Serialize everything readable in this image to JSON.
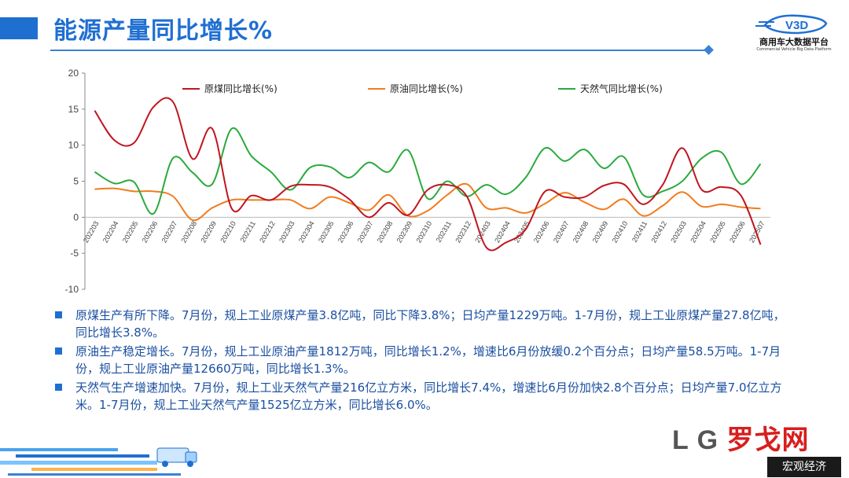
{
  "page": {
    "title": "能源产量同比增长%",
    "logo_name": "商用车大数据平台",
    "logo_sub": "Commercial Vehicle Big Data Platform",
    "footer_brand_log": "L G",
    "footer_brand_cn": "罗戈网",
    "footer_tag": "宏观经济"
  },
  "bullets": [
    "原煤生产有所下降。7月份，规上工业原煤产量3.8亿吨，同比下降3.8%；日均产量1229万吨。1-7月份，规上工业原煤产量27.8亿吨，同比增长3.8%。",
    "原油生产稳定增长。7月份，规上工业原油产量1812万吨，同比增长1.2%，增速比6月份放缓0.2个百分点；日均产量58.5万吨。1-7月份，规上工业原油产量12660万吨，同比增长1.3%。",
    "天然气生产增速加快。7月份，规上工业天然气产量216亿立方米，同比增长7.4%，增速比6月份加快2.8个百分点；日均产量7.0亿立方米。1-7月份，规上工业天然气产量1525亿立方米，同比增长6.0%。"
  ],
  "colors": {
    "accent": "#1f6fd1",
    "coal": "#c0161f",
    "oil": "#f07c1e",
    "gas": "#2aaa3c",
    "grid": "#d9d9d9"
  },
  "chart_data": {
    "type": "line",
    "x": [
      "202203",
      "202204",
      "202205",
      "202206",
      "202207",
      "202208",
      "202209",
      "202210",
      "202211",
      "202212",
      "202303",
      "202304",
      "202305",
      "202306",
      "202307",
      "202308",
      "202309",
      "202310",
      "202311",
      "202312",
      "202403",
      "202404",
      "202405",
      "202406",
      "202407",
      "202408",
      "202409",
      "202410",
      "202411",
      "202412",
      "202503",
      "202504",
      "202505",
      "202506",
      "202507"
    ],
    "ylim": [
      -10,
      20
    ],
    "yticks": [
      -10,
      -5,
      0,
      5,
      10,
      15,
      20
    ],
    "grid": false,
    "legend_position": "top",
    "series": [
      {
        "name": "原煤同比增长(%)",
        "color": "#c0161f",
        "values": [
          14.8,
          10.7,
          10.3,
          15.3,
          16.0,
          8.1,
          12.3,
          1.2,
          3.0,
          2.4,
          4.3,
          4.5,
          4.2,
          2.5,
          0.0,
          2.0,
          0.3,
          3.8,
          4.5,
          2.9,
          -4.2,
          -3.5,
          -1.7,
          3.6,
          2.8,
          2.8,
          4.4,
          4.6,
          1.8,
          4.5,
          9.6,
          3.8,
          4.2,
          3.0,
          -3.8
        ]
      },
      {
        "name": "原油同比增长(%)",
        "color": "#f07c1e",
        "values": [
          3.9,
          4.0,
          3.6,
          3.6,
          2.9,
          -0.4,
          1.3,
          2.4,
          2.4,
          2.4,
          2.4,
          1.2,
          2.8,
          2.0,
          1.0,
          3.1,
          0.2,
          0.9,
          3.1,
          4.6,
          1.3,
          1.3,
          0.6,
          1.9,
          3.4,
          2.1,
          1.1,
          2.5,
          0.2,
          1.6,
          3.5,
          1.5,
          1.8,
          1.4,
          1.2
        ]
      },
      {
        "name": "天然气同比增长(%)",
        "color": "#2aaa3c",
        "values": [
          6.3,
          4.7,
          4.9,
          0.5,
          8.2,
          6.2,
          4.6,
          12.3,
          8.5,
          6.3,
          3.8,
          6.9,
          7.0,
          5.5,
          7.6,
          6.3,
          9.3,
          2.6,
          5.0,
          2.9,
          4.5,
          3.2,
          5.5,
          9.6,
          7.8,
          9.4,
          6.8,
          8.4,
          3.1,
          3.6,
          5.0,
          8.2,
          9.0,
          4.6,
          7.4
        ]
      }
    ]
  }
}
